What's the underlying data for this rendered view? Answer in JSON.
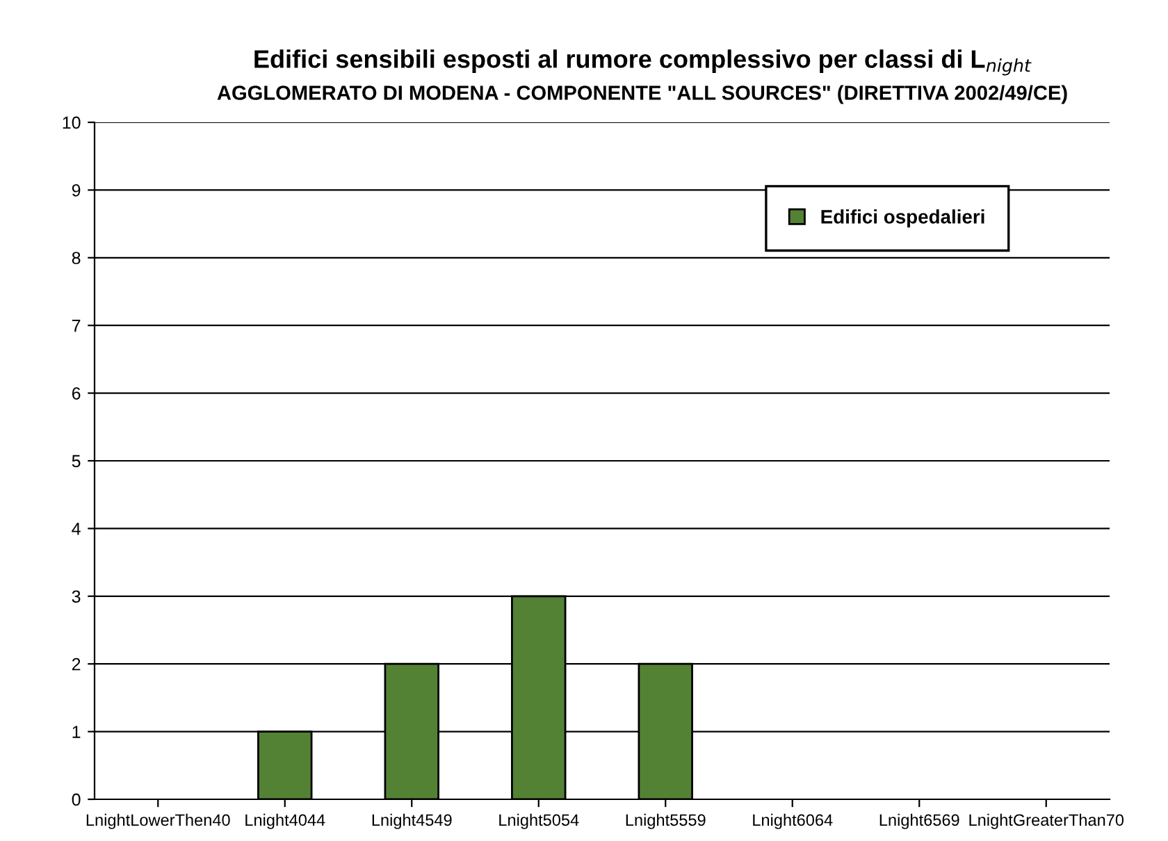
{
  "chart_data": {
    "type": "bar",
    "title": "Edifici sensibili esposti al rumore complessivo per classi di L$_{night}$",
    "subtitle": "AGGLOMERATO DI MODENA - COMPONENTE \"ALL SOURCES\" (DIRETTIVA 2002/49/CE)",
    "categories": [
      "LnightLowerThen40",
      "Lnight4044",
      "Lnight4549",
      "Lnight5054",
      "Lnight5559",
      "Lnight6064",
      "Lnight6569",
      "LnightGreaterThan70"
    ],
    "series": [
      {
        "name": "Edifici ospedalieri",
        "color": "#548235",
        "values": [
          0,
          1,
          2,
          3,
          2,
          0,
          0,
          0
        ]
      }
    ],
    "ylim": [
      0,
      10
    ],
    "yticks": [
      0,
      1,
      2,
      3,
      4,
      5,
      6,
      7,
      8,
      9,
      10
    ],
    "grid": "y",
    "legend": "top right"
  }
}
